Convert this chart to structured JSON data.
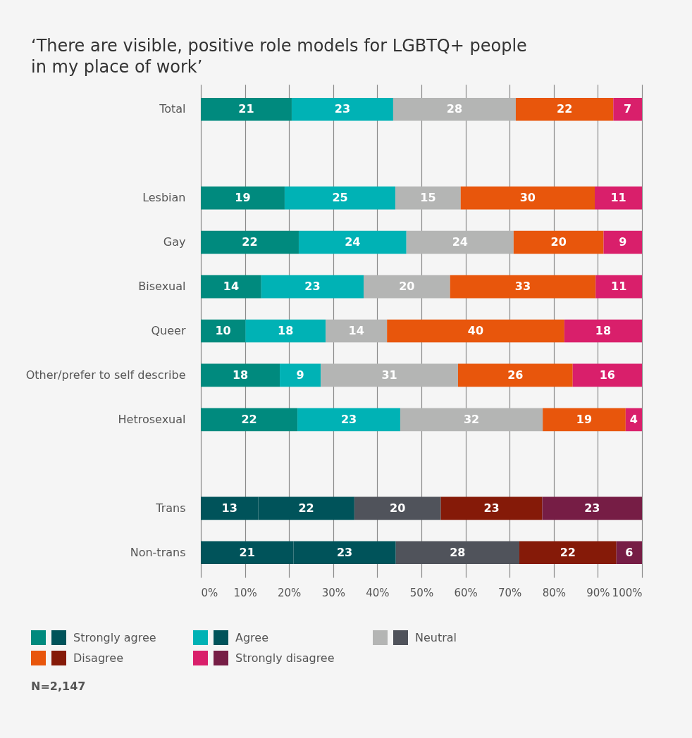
{
  "chart_data": {
    "type": "bar",
    "orientation": "horizontal",
    "stacked": true,
    "title": "‘There are visible, positive role models for LGBTQ+ people in my place of work’",
    "categories": [
      "Total",
      null,
      "Lesbian",
      "Gay",
      "Bisexual",
      "Queer",
      "Other/prefer to self describe",
      "Hetrosexual",
      null,
      "Trans",
      "Non-trans"
    ],
    "series": [
      {
        "name": "Strongly agree",
        "colors": [
          "#008a7e",
          null,
          "#008a7e",
          "#008a7e",
          "#008a7e",
          "#008a7e",
          "#008a7e",
          "#008a7e",
          null,
          "#00535a",
          "#00535a"
        ],
        "values": [
          20.6,
          null,
          19.0,
          22.2,
          13.7,
          10.1,
          17.9,
          21.9,
          null,
          13.0,
          21.0
        ],
        "value_labels": [
          "21",
          null,
          "19",
          "22",
          "14",
          "10",
          "18",
          "22",
          null,
          "13",
          "21"
        ]
      },
      {
        "name": "Agree",
        "colors": [
          "#00b2b5",
          null,
          "#00b2b5",
          "#00b2b5",
          "#00b2b5",
          "#00b2b5",
          "#00b2b5",
          "#00b2b5",
          null,
          "#00535a",
          "#00535a"
        ],
        "values": [
          23.0,
          null,
          25.1,
          24.4,
          23.2,
          18.2,
          9.3,
          23.3,
          null,
          21.8,
          23.2
        ],
        "value_labels": [
          "23",
          null,
          "25",
          "24",
          "23",
          "18",
          "9",
          "23",
          null,
          "22",
          "23"
        ]
      },
      {
        "name": "Neutral",
        "colors": [
          "#b4b5b4",
          null,
          "#b4b5b4",
          "#b4b5b4",
          "#b4b5b4",
          "#b4b5b4",
          "#b4b5b4",
          "#b4b5b4",
          null,
          "#50535b",
          "#50535b"
        ],
        "values": [
          27.8,
          null,
          14.8,
          24.3,
          19.6,
          13.9,
          31.1,
          32.3,
          null,
          19.6,
          28.0
        ],
        "value_labels": [
          "28",
          null,
          "15",
          "24",
          "20",
          "14",
          "31",
          "32",
          null,
          "20",
          "28"
        ]
      },
      {
        "name": "Disagree",
        "colors": [
          "#e8560c",
          null,
          "#e8560c",
          "#e8560c",
          "#e8560c",
          "#e8560c",
          "#e8560c",
          "#e8560c",
          null,
          "#851a08",
          "#851a08"
        ],
        "values": [
          22.1,
          null,
          30.4,
          20.4,
          33.0,
          40.2,
          26.0,
          18.8,
          null,
          23.0,
          22.0
        ],
        "value_labels": [
          "22",
          null,
          "30",
          "20",
          "33",
          "40",
          "26",
          "19",
          null,
          "23",
          "22"
        ]
      },
      {
        "name": "Strongly disagree",
        "colors": [
          "#d91f6b",
          null,
          "#d91f6b",
          "#d91f6b",
          "#d91f6b",
          "#d91f6b",
          "#d91f6b",
          "#d91f6b",
          null,
          "#761d45",
          "#761d45"
        ],
        "values": [
          6.5,
          null,
          10.7,
          8.7,
          10.5,
          17.6,
          15.7,
          3.7,
          null,
          22.6,
          5.8
        ],
        "value_labels": [
          "7",
          null,
          "11",
          "9",
          "11",
          "18",
          "16",
          "4",
          null,
          "23",
          "6"
        ]
      }
    ],
    "xlim": [
      0,
      100
    ],
    "xticks": [
      {
        "value": 0,
        "label": "0%"
      },
      {
        "value": 10,
        "label": "10%"
      },
      {
        "value": 20,
        "label": "20%"
      },
      {
        "value": 30,
        "label": "30%"
      },
      {
        "value": 40,
        "label": "40%"
      },
      {
        "value": 50,
        "label": "50%"
      },
      {
        "value": 60,
        "label": "60%"
      },
      {
        "value": 70,
        "label": "70%"
      },
      {
        "value": 80,
        "label": "80%"
      },
      {
        "value": 90,
        "label": "90%"
      },
      {
        "value": 100,
        "label": "100%"
      }
    ],
    "grid": "x",
    "legend": "bottom",
    "annotations": [
      "N=2,147"
    ]
  }
}
